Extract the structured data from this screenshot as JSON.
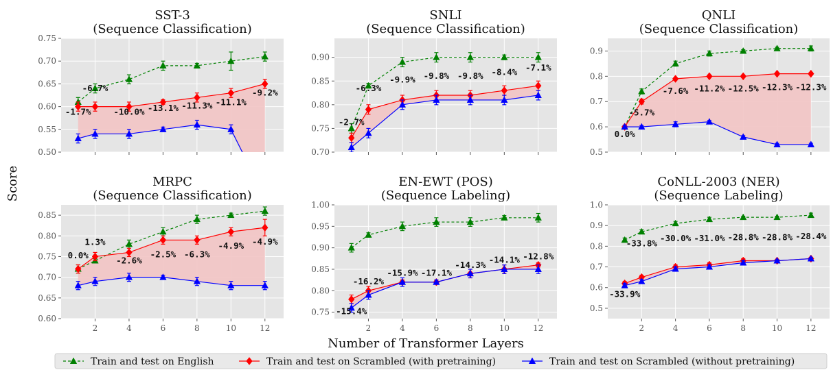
{
  "figure": {
    "ylabel": "Score",
    "xlabel": "Number of Transformer Layers"
  },
  "colors": {
    "english": "#008000",
    "scrambled_pretrain": "#ff0000",
    "scrambled_nopretrain": "#0000ff",
    "panel_bg": "#e5e5e5",
    "gap_fill": "#f2c4c4"
  },
  "legend": [
    {
      "key": "english",
      "label": "Train and test on English",
      "marker": "triangle",
      "style": "dashed"
    },
    {
      "key": "scrambled_pretrain",
      "label": "Train and test on Scrambled (with  pretraining)",
      "marker": "diamond",
      "style": "solid"
    },
    {
      "key": "scrambled_nopretrain",
      "label": "Train and test on Scrambled (without  pretraining)",
      "marker": "triangle",
      "style": "solid"
    }
  ],
  "chart_data": [
    {
      "type": "line",
      "title": "SST-3\n(Sequence Classification)",
      "x": [
        1,
        2,
        4,
        6,
        8,
        10,
        12
      ],
      "xticks": [],
      "ylim": [
        0.5,
        0.75
      ],
      "yticks": [
        "0.50",
        "0.55",
        "0.60",
        "0.65",
        "0.70",
        "0.75"
      ],
      "series": [
        {
          "key": "english",
          "values": [
            0.61,
            0.64,
            0.66,
            0.69,
            0.69,
            0.7,
            0.71
          ],
          "err": [
            0.01,
            0.01,
            0.01,
            0.01,
            0.005,
            0.02,
            0.01
          ]
        },
        {
          "key": "scrambled_pretrain",
          "values": [
            0.6,
            0.6,
            0.6,
            0.61,
            0.62,
            0.63,
            0.65
          ],
          "err": [
            0.01,
            0.01,
            0.01,
            0.005,
            0.01,
            0.01,
            0.01
          ]
        },
        {
          "key": "scrambled_nopretrain",
          "values": [
            0.53,
            0.54,
            0.54,
            0.55,
            0.56,
            0.55,
            0.4
          ],
          "err": [
            0.01,
            0.01,
            0.01,
            0.005,
            0.01,
            0.01,
            0.0
          ]
        }
      ],
      "annotations": [
        {
          "text": "-6.7%",
          "x": 2,
          "y": 0.634
        },
        {
          "text": "-1.7%",
          "x": 1,
          "y": 0.582
        },
        {
          "text": "-10.0%",
          "x": 4,
          "y": 0.582
        },
        {
          "text": "-13.1%",
          "x": 6,
          "y": 0.59
        },
        {
          "text": "-11.3%",
          "x": 8,
          "y": 0.596
        },
        {
          "text": "-11.1%",
          "x": 10,
          "y": 0.603
        },
        {
          "text": "-9.2%",
          "x": 12,
          "y": 0.624
        }
      ]
    },
    {
      "type": "line",
      "title": "SNLI\n(Sequence Classification)",
      "x": [
        1,
        2,
        4,
        6,
        8,
        10,
        12
      ],
      "xticks": [],
      "ylim": [
        0.7,
        0.94
      ],
      "yticks": [
        "0.70",
        "0.75",
        "0.80",
        "0.85",
        "0.90"
      ],
      "series": [
        {
          "key": "english",
          "values": [
            0.75,
            0.84,
            0.89,
            0.9,
            0.9,
            0.9,
            0.9
          ],
          "err": [
            0.01,
            0.005,
            0.01,
            0.01,
            0.01,
            0.005,
            0.01
          ]
        },
        {
          "key": "scrambled_pretrain",
          "values": [
            0.73,
            0.79,
            0.81,
            0.82,
            0.82,
            0.83,
            0.84
          ],
          "err": [
            0.01,
            0.01,
            0.01,
            0.01,
            0.01,
            0.01,
            0.01
          ]
        },
        {
          "key": "scrambled_nopretrain",
          "values": [
            0.71,
            0.74,
            0.8,
            0.81,
            0.81,
            0.81,
            0.82
          ],
          "err": [
            0.01,
            0.01,
            0.01,
            0.01,
            0.01,
            0.01,
            0.01
          ]
        }
      ],
      "annotations": [
        {
          "text": "-2.7%",
          "x": 1,
          "y": 0.757
        },
        {
          "text": "-6.3%",
          "x": 2,
          "y": 0.829
        },
        {
          "text": "-9.9%",
          "x": 4,
          "y": 0.847
        },
        {
          "text": "-9.8%",
          "x": 6,
          "y": 0.855
        },
        {
          "text": "-9.8%",
          "x": 8,
          "y": 0.855
        },
        {
          "text": "-8.4%",
          "x": 10,
          "y": 0.863
        },
        {
          "text": "-7.1%",
          "x": 12,
          "y": 0.872
        }
      ]
    },
    {
      "type": "line",
      "title": "QNLI\n(Sequence Classification)",
      "x": [
        1,
        2,
        4,
        6,
        8,
        10,
        12
      ],
      "xticks": [],
      "ylim": [
        0.5,
        0.95
      ],
      "yticks": [
        "0.5",
        "0.6",
        "0.7",
        "0.8",
        "0.9"
      ],
      "series": [
        {
          "key": "english",
          "values": [
            0.6,
            0.74,
            0.85,
            0.89,
            0.9,
            0.91,
            0.91
          ],
          "err": [
            0.005,
            0.01,
            0.01,
            0.01,
            0.005,
            0.005,
            0.01
          ]
        },
        {
          "key": "scrambled_pretrain",
          "values": [
            0.6,
            0.7,
            0.79,
            0.8,
            0.8,
            0.81,
            0.81
          ],
          "err": [
            0.005,
            0.01,
            0.005,
            0.005,
            0.005,
            0.005,
            0.005
          ]
        },
        {
          "key": "scrambled_nopretrain",
          "values": [
            0.6,
            0.6,
            0.61,
            0.62,
            0.56,
            0.53,
            0.53
          ],
          "err": [
            0.005,
            0.005,
            0.01,
            0.005,
            0.005,
            0.005,
            0.005
          ]
        }
      ],
      "annotations": [
        {
          "text": "-5.7%",
          "x": 2,
          "y": 0.645
        },
        {
          "text": "0.0%",
          "x": 1,
          "y": 0.56
        },
        {
          "text": "-7.6%",
          "x": 4,
          "y": 0.73
        },
        {
          "text": "-11.2%",
          "x": 6,
          "y": 0.74
        },
        {
          "text": "-12.5%",
          "x": 8,
          "y": 0.74
        },
        {
          "text": "-12.3%",
          "x": 10,
          "y": 0.745
        },
        {
          "text": "-12.3%",
          "x": 12,
          "y": 0.745
        }
      ]
    },
    {
      "type": "line",
      "title": "MRPC\n(Sequence Classification)",
      "x": [
        1,
        2,
        4,
        6,
        8,
        10,
        12
      ],
      "xticks": [
        "2",
        "4",
        "6",
        "8",
        "10",
        "12"
      ],
      "ylim": [
        0.6,
        0.875
      ],
      "yticks": [
        "0.60",
        "0.65",
        "0.70",
        "0.75",
        "0.80",
        "0.85"
      ],
      "series": [
        {
          "key": "english",
          "values": [
            0.72,
            0.74,
            0.78,
            0.81,
            0.84,
            0.85,
            0.86
          ],
          "err": [
            0.01,
            0.005,
            0.01,
            0.01,
            0.01,
            0.005,
            0.01
          ]
        },
        {
          "key": "scrambled_pretrain",
          "values": [
            0.72,
            0.75,
            0.76,
            0.79,
            0.79,
            0.81,
            0.82
          ],
          "err": [
            0.01,
            0.01,
            0.01,
            0.01,
            0.01,
            0.01,
            0.02
          ]
        },
        {
          "key": "scrambled_nopretrain",
          "values": [
            0.68,
            0.69,
            0.7,
            0.7,
            0.69,
            0.68,
            0.68
          ],
          "err": [
            0.01,
            0.01,
            0.01,
            0.005,
            0.01,
            0.01,
            0.01
          ]
        }
      ],
      "annotations": [
        {
          "text": "0.0%",
          "x": 1,
          "y": 0.746
        },
        {
          "text": "1.3%",
          "x": 2,
          "y": 0.778
        },
        {
          "text": "-2.6%",
          "x": 4,
          "y": 0.733
        },
        {
          "text": "-2.5%",
          "x": 6,
          "y": 0.748
        },
        {
          "text": "-6.3%",
          "x": 8,
          "y": 0.748
        },
        {
          "text": "-4.9%",
          "x": 10,
          "y": 0.769
        },
        {
          "text": "-4.9%",
          "x": 12,
          "y": 0.779
        }
      ]
    },
    {
      "type": "line",
      "title": "EN-EWT (POS)\n(Sequence Labeling)",
      "x": [
        1,
        2,
        4,
        6,
        8,
        10,
        12
      ],
      "xticks": [
        "2",
        "4",
        "6",
        "8",
        "10",
        "12"
      ],
      "ylim": [
        0.735,
        1.0
      ],
      "yticks": [
        "0.75",
        "0.80",
        "0.85",
        "0.90",
        "0.95",
        "1.00"
      ],
      "series": [
        {
          "key": "english",
          "values": [
            0.9,
            0.93,
            0.95,
            0.96,
            0.96,
            0.97,
            0.97
          ],
          "err": [
            0.01,
            0.005,
            0.01,
            0.01,
            0.01,
            0.005,
            0.01
          ]
        },
        {
          "key": "scrambled_pretrain",
          "values": [
            0.78,
            0.8,
            0.82,
            0.82,
            0.84,
            0.85,
            0.86
          ],
          "err": [
            0.01,
            0.01,
            0.005,
            0.005,
            0.01,
            0.01,
            0.005
          ]
        },
        {
          "key": "scrambled_nopretrain",
          "values": [
            0.76,
            0.79,
            0.82,
            0.82,
            0.84,
            0.85,
            0.85
          ],
          "err": [
            0.01,
            0.01,
            0.01,
            0.005,
            0.01,
            0.01,
            0.01
          ]
        }
      ],
      "annotations": [
        {
          "text": "-15.4%",
          "x": 1,
          "y": 0.745
        },
        {
          "text": "-16.2%",
          "x": 2,
          "y": 0.815
        },
        {
          "text": "-15.9%",
          "x": 4,
          "y": 0.835
        },
        {
          "text": "-17.1%",
          "x": 6,
          "y": 0.835
        },
        {
          "text": "-14.3%",
          "x": 8,
          "y": 0.853
        },
        {
          "text": "-14.1%",
          "x": 10,
          "y": 0.865
        },
        {
          "text": "-12.8%",
          "x": 12,
          "y": 0.873
        }
      ]
    },
    {
      "type": "line",
      "title": "CoNLL-2003 (NER)\n(Sequence Labeling)",
      "x": [
        1,
        2,
        4,
        6,
        8,
        10,
        12
      ],
      "xticks": [
        "2",
        "4",
        "6",
        "8",
        "10",
        "12"
      ],
      "ylim": [
        0.45,
        1.0
      ],
      "yticks": [
        "0.5",
        "0.6",
        "0.7",
        "0.8",
        "0.9",
        "1.0"
      ],
      "series": [
        {
          "key": "english",
          "values": [
            0.83,
            0.87,
            0.91,
            0.93,
            0.94,
            0.94,
            0.95
          ],
          "err": [
            0.01,
            0.01,
            0.01,
            0.01,
            0.005,
            0.005,
            0.01
          ]
        },
        {
          "key": "scrambled_pretrain",
          "values": [
            0.62,
            0.65,
            0.7,
            0.71,
            0.73,
            0.73,
            0.74
          ],
          "err": [
            0.01,
            0.01,
            0.01,
            0.01,
            0.01,
            0.005,
            0.005
          ]
        },
        {
          "key": "scrambled_nopretrain",
          "values": [
            0.61,
            0.63,
            0.69,
            0.7,
            0.72,
            0.73,
            0.74
          ],
          "err": [
            0.01,
            0.01,
            0.01,
            0.01,
            0.01,
            0.005,
            0.005
          ]
        }
      ],
      "annotations": [
        {
          "text": "-33.9%",
          "x": 1,
          "y": 0.555
        },
        {
          "text": "-33.8%",
          "x": 2,
          "y": 0.8
        },
        {
          "text": "-30.0%",
          "x": 4,
          "y": 0.825
        },
        {
          "text": "-31.0%",
          "x": 6,
          "y": 0.825
        },
        {
          "text": "-28.8%",
          "x": 8,
          "y": 0.83
        },
        {
          "text": "-28.8%",
          "x": 10,
          "y": 0.83
        },
        {
          "text": "-28.4%",
          "x": 12,
          "y": 0.835
        }
      ]
    }
  ]
}
